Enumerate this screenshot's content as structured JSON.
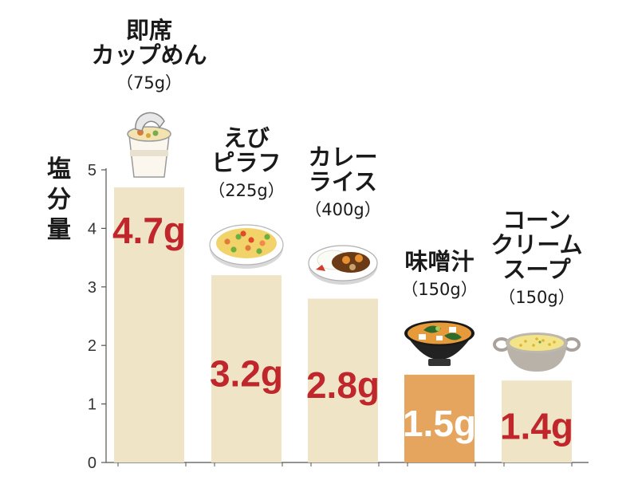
{
  "chart_data": {
    "type": "bar",
    "ylabel": "塩分量",
    "ylim": [
      0,
      5
    ],
    "yticks": [
      0,
      1,
      2,
      3,
      4,
      5
    ],
    "unit": "g",
    "categories": [
      {
        "name_lines": [
          "即席",
          "カップめん"
        ],
        "portion": "（75g）",
        "icon": "cup-noodle-icon"
      },
      {
        "name_lines": [
          "えび",
          "ピラフ"
        ],
        "portion": "（225g）",
        "icon": "shrimp-pilaf-icon"
      },
      {
        "name_lines": [
          "カレー",
          "ライス"
        ],
        "portion": "（400g）",
        "icon": "curry-rice-icon"
      },
      {
        "name_lines": [
          "味噌汁"
        ],
        "portion": "（150g）",
        "icon": "miso-soup-icon"
      },
      {
        "name_lines": [
          "コーン",
          "クリーム",
          "スープ"
        ],
        "portion": "（150g）",
        "icon": "corn-soup-icon"
      }
    ],
    "values": [
      4.7,
      3.2,
      2.8,
      1.5,
      1.4
    ],
    "value_labels": [
      "4.7g",
      "3.2g",
      "2.8g",
      "1.5g",
      "1.4g"
    ],
    "highlight_indices": [
      3
    ],
    "colors": {
      "bar": "#efe4c6",
      "bar_highlight": "#e6a55e",
      "value_text": "#c0272d",
      "value_text_highlight": "#ffffff",
      "axis": "#555555"
    }
  }
}
